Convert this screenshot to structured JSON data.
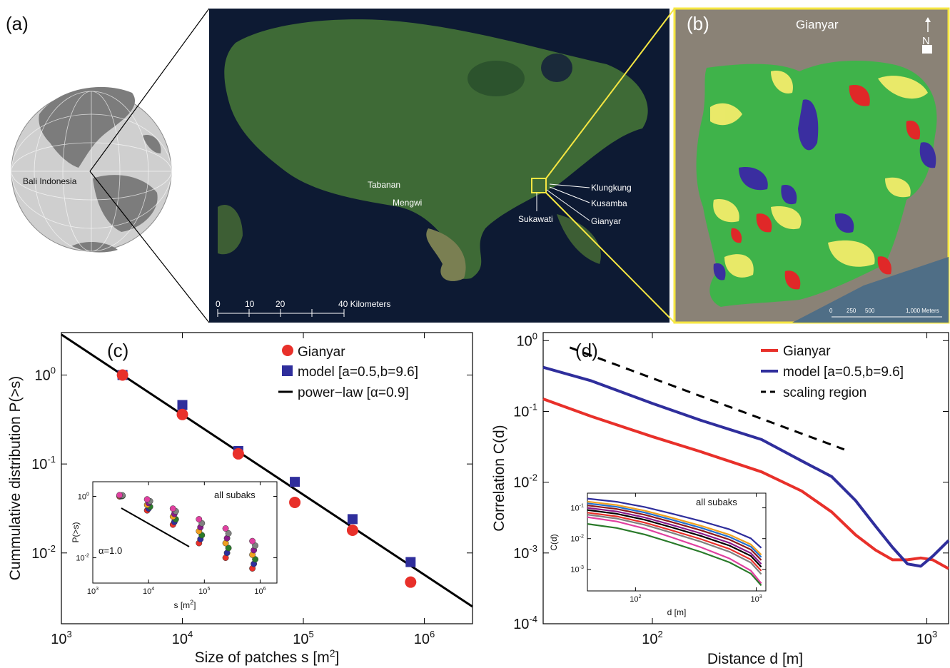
{
  "panels": {
    "a": "(a)",
    "b": "(b)",
    "c": "(c)",
    "d": "(d)"
  },
  "globe": {
    "location_label": "Bali Indonesia"
  },
  "map": {
    "places": [
      "Tabanan",
      "Mengwi",
      "Sukawati",
      "Klungkung",
      "Kusamba",
      "Gianyar"
    ],
    "scale_ticks": [
      "0",
      "10",
      "20",
      "40 Kilometers"
    ]
  },
  "inset_map": {
    "title": "Gianyar",
    "north": "N",
    "scale_ticks": [
      "0",
      "250",
      "500",
      "1,000 Meters"
    ],
    "colors": {
      "green": "#3fb34a",
      "yellow": "#f2ec6a",
      "red": "#e02828",
      "blue": "#3a2ea0"
    }
  },
  "chart_data": [
    {
      "type": "scatter",
      "panel": "(c)",
      "xlabel": "Size of patches s [m²]",
      "ylabel": "Cummulative distribution P(>s)",
      "xscale": "log",
      "yscale": "log",
      "xlim": [
        1000,
        2500000
      ],
      "ylim": [
        0.0016,
        3
      ],
      "xticks": [
        {
          "v": 1000,
          "l": "10",
          "e": "3"
        },
        {
          "v": 10000,
          "l": "10",
          "e": "4"
        },
        {
          "v": 100000,
          "l": "10",
          "e": "5"
        },
        {
          "v": 1000000,
          "l": "10",
          "e": "6"
        }
      ],
      "yticks": [
        {
          "v": 0.01,
          "l": "10",
          "e": "-2"
        },
        {
          "v": 0.1,
          "l": "10",
          "e": "-1"
        },
        {
          "v": 1,
          "l": "10",
          "e": "0"
        }
      ],
      "legend_position": "top-right",
      "series": [
        {
          "name": "Gianyar",
          "marker": "circle",
          "color": "#e8302a",
          "x": [
            3200,
            10000,
            29000,
            85000,
            255000,
            770000
          ],
          "y": [
            1.0,
            0.36,
            0.13,
            0.037,
            0.018,
            0.0047
          ]
        },
        {
          "name": "model [a=0.5,b=9.6]",
          "marker": "square",
          "color": "#2f2e9c",
          "x": [
            3200,
            10000,
            29000,
            85000,
            255000,
            770000
          ],
          "y": [
            1.0,
            0.46,
            0.14,
            0.063,
            0.024,
            0.0079
          ]
        },
        {
          "name": "power−law [α=0.9]",
          "marker": "line",
          "color": "#000000",
          "x": [
            1000,
            2500000
          ],
          "y": [
            2.85,
            0.00249
          ]
        }
      ],
      "inset": {
        "title": "all subaks",
        "xlabel": "s [m²]",
        "ylabel": "P(>s)",
        "slope_label": "α=1.0",
        "xlim": [
          1000,
          2000000
        ],
        "ylim": [
          0.0015,
          3
        ],
        "xticks": [
          {
            "v": 1000,
            "l": "10",
            "e": "3"
          },
          {
            "v": 10000,
            "l": "10",
            "e": "4"
          },
          {
            "v": 100000,
            "l": "10",
            "e": "5"
          },
          {
            "v": 1000000,
            "l": "10",
            "e": "6"
          }
        ],
        "yticks": [
          {
            "v": 0.01,
            "l": "10",
            "e": "-2"
          },
          {
            "v": 1,
            "l": "10",
            "e": "0"
          }
        ],
        "x": [
          3200,
          10000,
          29000,
          85000,
          255000,
          770000
        ],
        "groups": [
          [
            1.1,
            0.8,
            0.4,
            0.18,
            0.09,
            0.035
          ],
          [
            1.1,
            0.6,
            0.25,
            0.07,
            0.032,
            0.015
          ],
          [
            1.0,
            0.45,
            0.18,
            0.045,
            0.015,
            0.007
          ],
          [
            1.0,
            0.35,
            0.12,
            0.03,
            0.01,
            0.0045
          ]
        ]
      }
    },
    {
      "type": "line",
      "panel": "(d)",
      "xlabel": "Distance d [m]",
      "ylabel": "Correlation C(d)",
      "xscale": "log",
      "yscale": "log",
      "xlim": [
        40,
        1200
      ],
      "ylim": [
        0.0001,
        1.3
      ],
      "xticks": [
        {
          "v": 100,
          "l": "10",
          "e": "2"
        },
        {
          "v": 1000,
          "l": "10",
          "e": "3"
        }
      ],
      "yticks": [
        {
          "v": 0.0001,
          "l": "10",
          "e": "-4"
        },
        {
          "v": 0.001,
          "l": "10",
          "e": "-3"
        },
        {
          "v": 0.01,
          "l": "10",
          "e": "-2"
        },
        {
          "v": 0.1,
          "l": "10",
          "e": "-1"
        },
        {
          "v": 1,
          "l": "10",
          "e": "0"
        }
      ],
      "legend_position": "top-right",
      "series": [
        {
          "name": "Gianyar",
          "color": "#e8302a",
          "x": [
            40,
            60,
            100,
            150,
            250,
            350,
            450,
            550,
            650,
            750,
            850,
            950,
            1050,
            1200
          ],
          "y": [
            0.15,
            0.085,
            0.044,
            0.027,
            0.014,
            0.0075,
            0.0038,
            0.0018,
            0.0011,
            0.0008,
            0.0008,
            0.00085,
            0.0008,
            0.0006
          ]
        },
        {
          "name": "model [a=0.5,b=9.6]",
          "color": "#2f2e9c",
          "x": [
            40,
            60,
            100,
            150,
            250,
            350,
            450,
            550,
            650,
            750,
            850,
            950,
            1050,
            1200
          ],
          "y": [
            0.42,
            0.27,
            0.13,
            0.075,
            0.04,
            0.02,
            0.012,
            0.0055,
            0.0024,
            0.0012,
            0.0007,
            0.00065,
            0.0009,
            0.0015
          ]
        },
        {
          "name": "scaling region",
          "color": "#000000",
          "dash": true,
          "x": [
            50,
            500
          ],
          "y": [
            0.8,
            0.029
          ]
        }
      ],
      "inset": {
        "title": "all subaks",
        "xlabel": "d [m]",
        "ylabel": "C(d)",
        "xlim": [
          40,
          1200
        ],
        "ylim": [
          0.0002,
          0.3
        ],
        "xticks": [
          {
            "v": 100,
            "l": "10",
            "e": "2"
          },
          {
            "v": 1000,
            "l": "10",
            "e": "3"
          }
        ],
        "yticks": [
          {
            "v": 0.001,
            "l": "10",
            "e": "-3"
          },
          {
            "v": 0.01,
            "l": "10",
            "e": "-2"
          },
          {
            "v": 0.1,
            "l": "10",
            "e": "-1"
          }
        ],
        "curves": [
          {
            "color": "#2f2e9c",
            "y0": 0.2,
            "y1": 0.005
          },
          {
            "color": "#f0a020",
            "y0": 0.16,
            "y1": 0.003
          },
          {
            "color": "#1f6fd0",
            "y0": 0.14,
            "y1": 0.0025
          },
          {
            "color": "#8b1a1a",
            "y0": 0.12,
            "y1": 0.002
          },
          {
            "color": "#8a1a8a",
            "y0": 0.1,
            "y1": 0.0015
          },
          {
            "color": "#000000",
            "y0": 0.085,
            "y1": 0.0012
          },
          {
            "color": "#e8302a",
            "y0": 0.07,
            "y1": 0.0009
          },
          {
            "color": "#808080",
            "y0": 0.06,
            "y1": 0.0007
          },
          {
            "color": "#e040a0",
            "y0": 0.05,
            "y1": 0.00035
          },
          {
            "color": "#2a7a2a",
            "y0": 0.03,
            "y1": 0.0003
          }
        ]
      }
    }
  ]
}
